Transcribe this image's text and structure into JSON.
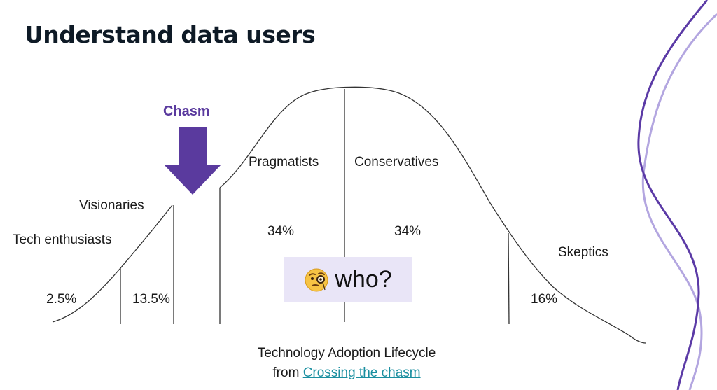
{
  "slide": {
    "title": "Understand data users"
  },
  "diagram": {
    "chasm_label": "Chasm",
    "segments": [
      {
        "name": "Tech enthusiasts",
        "percent": "2.5%"
      },
      {
        "name": "Visionaries",
        "percent": "13.5%"
      },
      {
        "name": "Pragmatists",
        "percent": "34%"
      },
      {
        "name": "Conservatives",
        "percent": "34%"
      },
      {
        "name": "Skeptics",
        "percent": "16%"
      }
    ],
    "callout": {
      "icon": "face-with-monocle-icon",
      "text": "who?"
    }
  },
  "caption": {
    "line1": "Technology Adoption Lifecycle",
    "prefix": "from",
    "link_text": "Crossing the chasm"
  },
  "colors": {
    "accent_purple": "#5a3a9e",
    "deco_dark": "#5b3aa6",
    "deco_light": "#b3a6e0",
    "callout_bg": "#e9e5f7",
    "link": "#1a8fa0"
  }
}
